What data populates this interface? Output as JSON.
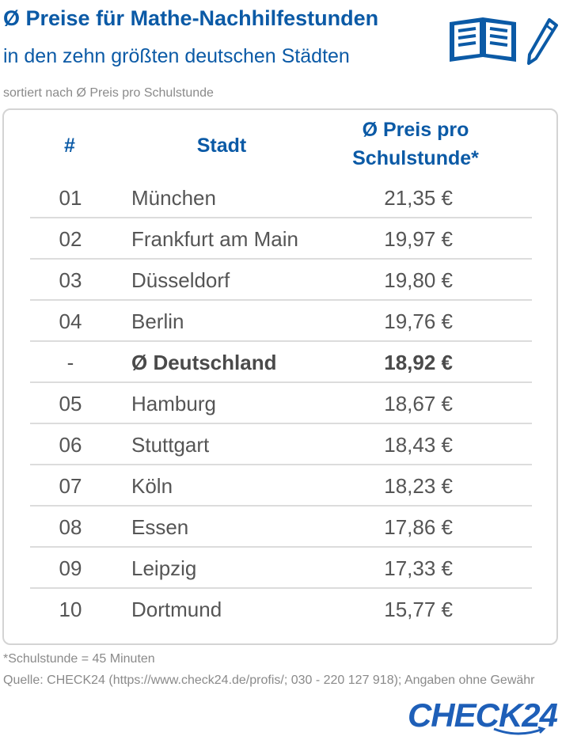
{
  "header": {
    "title": "Ø Preise für Mathe-Nachhilfestunden",
    "subtitle": "in den zehn größten deutschen Städten",
    "sort_note": "sortiert nach Ø Preis pro Schulstunde"
  },
  "icons": {
    "book": "open-book-icon",
    "pencil": "pencil-icon"
  },
  "colors": {
    "accent": "#0b5aa6",
    "text": "#555555",
    "muted": "#8a8a8a",
    "border": "#d4d4d4"
  },
  "chart_data": {
    "type": "table",
    "columns": [
      "#",
      "Stadt",
      "Ø Preis pro Schulstunde*"
    ],
    "rows": [
      {
        "rank": "01",
        "city": "München",
        "price": "21,35 €"
      },
      {
        "rank": "02",
        "city": "Frankfurt am Main",
        "price": "19,97 €"
      },
      {
        "rank": "03",
        "city": "Düsseldorf",
        "price": "19,80 €"
      },
      {
        "rank": "04",
        "city": "Berlin",
        "price": "19,76 €"
      },
      {
        "rank": "-",
        "city": "Ø Deutschland",
        "price": "18,92 €",
        "highlight": true
      },
      {
        "rank": "05",
        "city": "Hamburg",
        "price": "18,67 €"
      },
      {
        "rank": "06",
        "city": "Stuttgart",
        "price": "18,43 €"
      },
      {
        "rank": "07",
        "city": "Köln",
        "price": "18,23 €"
      },
      {
        "rank": "08",
        "city": "Essen",
        "price": "17,86 €"
      },
      {
        "rank": "09",
        "city": "Leipzig",
        "price": "17,33 €"
      },
      {
        "rank": "10",
        "city": "Dortmund",
        "price": "15,77 €"
      }
    ]
  },
  "table_header": {
    "num": "#",
    "city": "Stadt",
    "price_line1": "Ø Preis pro",
    "price_line2": "Schulstunde*"
  },
  "footer": {
    "footnote": "*Schulstunde = 45 Minuten",
    "source": "Quelle: CHECK24 (https://www.check24.de/profis/; 030 - 220 127 918); Angaben ohne Gewähr",
    "logo": "CHECK24"
  }
}
